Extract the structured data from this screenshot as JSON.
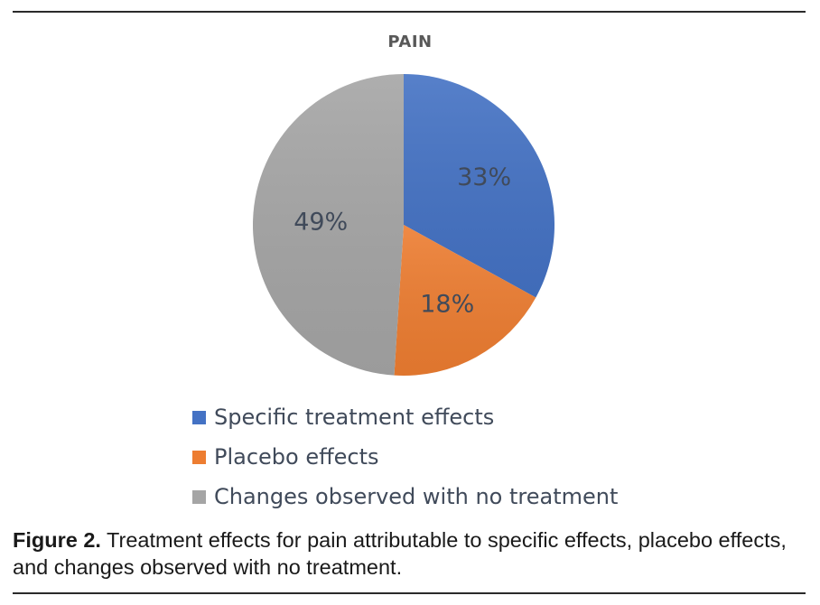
{
  "chart_data": {
    "type": "pie",
    "title": "PAIN",
    "categories": [
      "Specific treatment effects",
      "Placebo effects",
      "Changes observed with no treatment"
    ],
    "values": [
      33,
      18,
      49
    ],
    "data_labels": [
      "33%",
      "18%",
      "49%"
    ],
    "colors": [
      "#4472c4",
      "#ed7d31",
      "#a5a5a5"
    ],
    "legend_position": "bottom"
  },
  "caption": {
    "label": "Figure 2.",
    "text": " Treatment effects for pain attributable to specific effects, placebo effects, and changes observed with no treatment."
  }
}
